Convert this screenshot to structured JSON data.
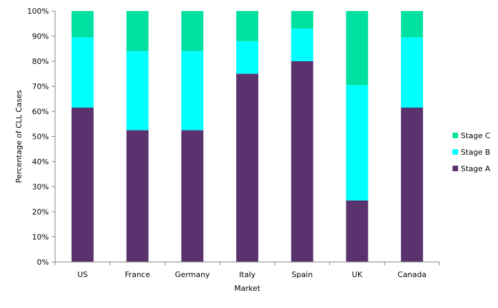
{
  "chart_data": {
    "type": "bar",
    "stacked": true,
    "percent_stacked": true,
    "title": "",
    "xlabel": "Market",
    "ylabel": "Percentage of CLL Cases",
    "ylim": [
      0,
      100
    ],
    "yticks": [
      "0%",
      "10%",
      "20%",
      "30%",
      "40%",
      "50%",
      "60%",
      "70%",
      "80%",
      "90%",
      "100%"
    ],
    "categories": [
      "US",
      "France",
      "Germany",
      "Italy",
      "Spain",
      "UK",
      "Canada"
    ],
    "series": [
      {
        "name": "Stage A",
        "color": "#5a336e",
        "values": [
          61.5,
          52.5,
          52.5,
          75,
          80,
          24.5,
          61.5
        ]
      },
      {
        "name": "Stage B",
        "color": "#00ffff",
        "values": [
          28,
          31.5,
          31.5,
          13,
          13,
          46,
          28
        ]
      },
      {
        "name": "Stage C",
        "color": "#00e0a0",
        "values": [
          10.5,
          16,
          16,
          12,
          7,
          29.5,
          10.5
        ]
      }
    ],
    "legend": {
      "position": "right",
      "order": [
        "Stage C",
        "Stage B",
        "Stage A"
      ]
    },
    "grid": false
  }
}
